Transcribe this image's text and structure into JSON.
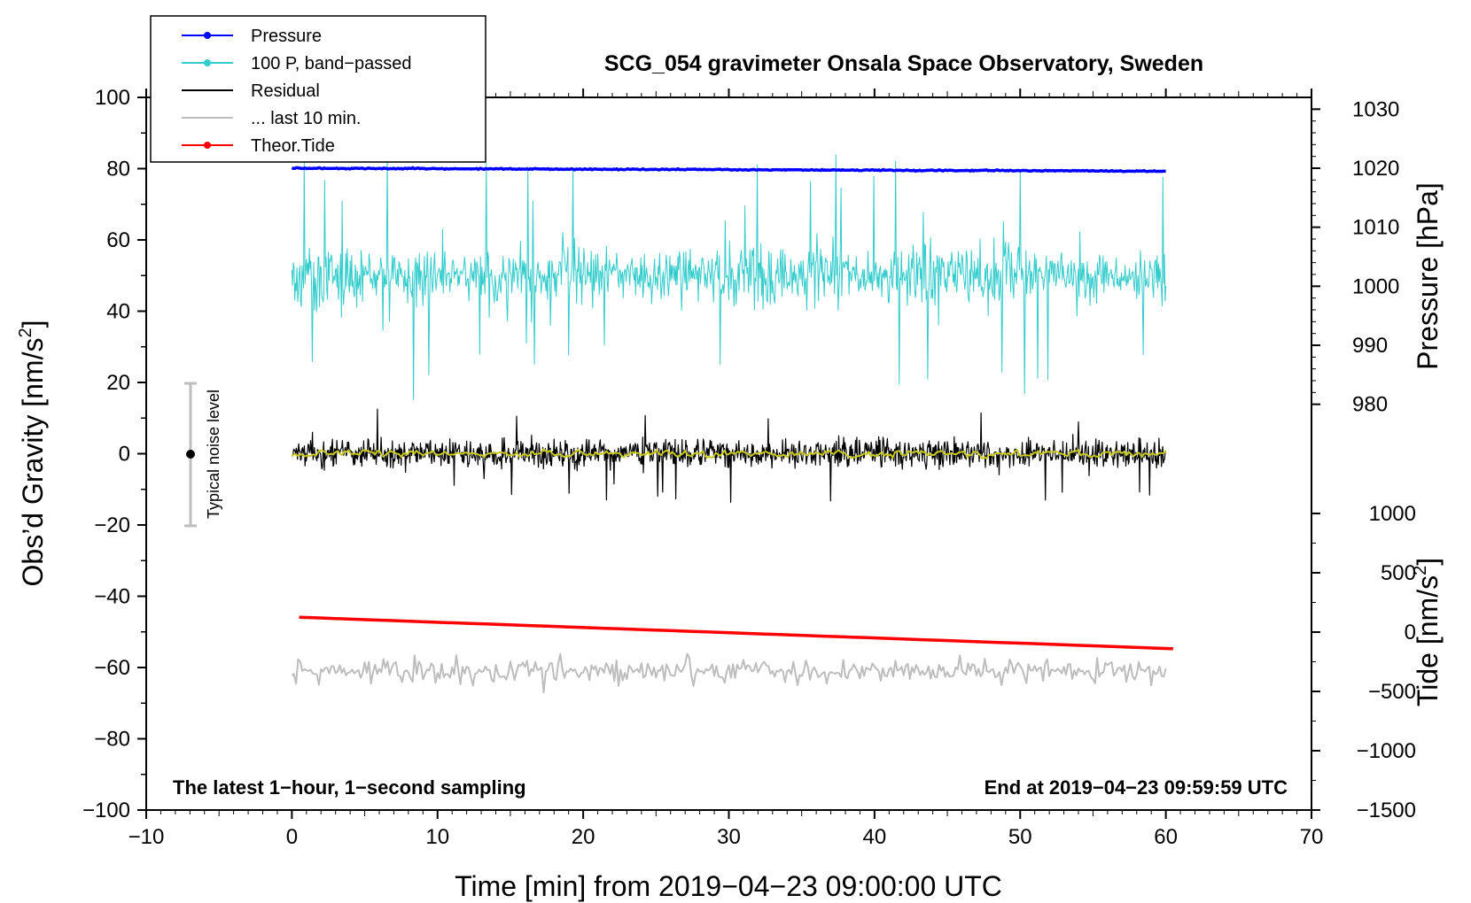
{
  "chart_data": {
    "type": "line",
    "title": "SCG_054 gravimeter Onsala Space Observatory, Sweden",
    "xlabel": "Time [min] from 2019−04−23 09:00:00 UTC",
    "ylabel": "Obs’d Gravity [nm/s",
    "ylabel_superscript": "2",
    "ylabel_suffix": "]",
    "right_ylabel_pressure": "Pressure [hPa]",
    "right_ylabel_tide": "Tide [nm/s",
    "right_ylabel_tide_superscript": "2",
    "right_ylabel_tide_suffix": "]",
    "xlim": [
      -10,
      70
    ],
    "ylim": [
      -100,
      100
    ],
    "pressure_axis_range": [
      978,
      1032
    ],
    "tide_axis_range": [
      -1500,
      1000
    ],
    "x_ticks": [
      -10,
      0,
      10,
      20,
      30,
      40,
      50,
      60,
      70
    ],
    "x_tick_labels": [
      "−10",
      "0",
      "10",
      "20",
      "30",
      "40",
      "50",
      "60",
      "70"
    ],
    "y_ticks": [
      -100,
      -80,
      -60,
      -40,
      -20,
      0,
      20,
      40,
      60,
      80,
      100
    ],
    "y_tick_labels": [
      "−100",
      "−80",
      "−60",
      "−40",
      "−20",
      "0",
      "20",
      "40",
      "60",
      "80",
      "100"
    ],
    "pressure_ticks": [
      980,
      990,
      1000,
      1010,
      1020,
      1030
    ],
    "pressure_tick_labels": [
      "980",
      "990",
      "1000",
      "1010",
      "1020",
      "1030"
    ],
    "tide_ticks": [
      -1500,
      -1000,
      -500,
      0,
      500,
      1000
    ],
    "tide_tick_labels": [
      "−1500",
      "−1000",
      "−500",
      "0",
      "500",
      "1000"
    ],
    "left_note": "The latest 1−hour, 1−second sampling",
    "right_note": "End at 2019−04−23 09:59:59 UTC",
    "noise_bar": {
      "label": "Typical noise level",
      "x": -7,
      "center": 0,
      "half_range": 20
    },
    "legend": {
      "placement": "top-left",
      "entries": [
        {
          "label": "Pressure",
          "color": "#0000ff",
          "marker": true
        },
        {
          "label": "100 P, band−passed",
          "color": "#33cccc",
          "marker": true
        },
        {
          "label": "Residual",
          "color": "#000000",
          "marker": false
        },
        {
          "label": "... last 10 min.",
          "color": "#bdbdbd",
          "marker": false
        },
        {
          "label": "Theor.Tide",
          "color": "#ff0000",
          "marker": true
        }
      ]
    },
    "series": [
      {
        "name": "Pressure",
        "axis": "pressure",
        "color": "#0000ff",
        "x_range": [
          0,
          60
        ],
        "start": 1020.0,
        "end": 1019.5,
        "noise": 0.1
      },
      {
        "name": "100 P, band−passed",
        "axis": "gravity",
        "color": "#33cccc",
        "x_range": [
          0,
          60
        ],
        "center": 50,
        "amplitude": 6,
        "spike_max": 35
      },
      {
        "name": "Residual",
        "axis": "gravity",
        "color": "#000000",
        "x_range": [
          0,
          60
        ],
        "center": 0,
        "amplitude": 4,
        "spike_max": 14
      },
      {
        "name": "Residual smoothed",
        "axis": "gravity",
        "color": "#c8c81e",
        "x_range": [
          0,
          60
        ],
        "center": 0,
        "amplitude": 1.2
      },
      {
        "name": "... last 10 min.",
        "axis": "gravity",
        "color": "#bdbdbd",
        "x_range": [
          0,
          60
        ],
        "center": -61,
        "amplitude": 3.5
      },
      {
        "name": "Theor.Tide",
        "axis": "tide",
        "color": "#ff0000",
        "x_range": [
          0.5,
          60.5
        ],
        "start": 125,
        "end": -140
      }
    ]
  }
}
